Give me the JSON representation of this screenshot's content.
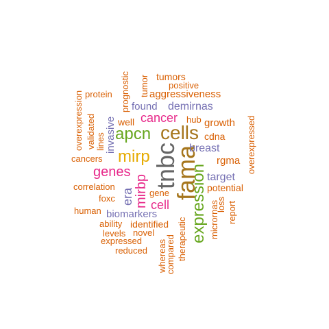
{
  "palette": {
    "orange": "#d95f02",
    "purple": "#7570b3",
    "magenta": "#e7298a",
    "green": "#66a61e",
    "gold": "#e6ab02",
    "brown": "#a6761d",
    "gray": "#666666"
  },
  "words": [
    {
      "text": "tumors"
    },
    {
      "text": "positive"
    },
    {
      "text": "tumor"
    },
    {
      "text": "prognostic"
    },
    {
      "text": "protein"
    },
    {
      "text": "aggressiveness"
    },
    {
      "text": "overexpression"
    },
    {
      "text": "found"
    },
    {
      "text": "demirnas"
    },
    {
      "text": "cancer"
    },
    {
      "text": "well"
    },
    {
      "text": "hub"
    },
    {
      "text": "growth"
    },
    {
      "text": "overexpressed"
    },
    {
      "text": "validated"
    },
    {
      "text": "lines"
    },
    {
      "text": "invasive"
    },
    {
      "text": "apcn"
    },
    {
      "text": "cells"
    },
    {
      "text": "cdna"
    },
    {
      "text": "tnbc"
    },
    {
      "text": "fama"
    },
    {
      "text": "breast"
    },
    {
      "text": "cancers"
    },
    {
      "text": "mirp"
    },
    {
      "text": "rgma"
    },
    {
      "text": "genes"
    },
    {
      "text": "expression"
    },
    {
      "text": "target"
    },
    {
      "text": "correlation"
    },
    {
      "text": "mirbp"
    },
    {
      "text": "era"
    },
    {
      "text": "gene"
    },
    {
      "text": "potential"
    },
    {
      "text": "foxc"
    },
    {
      "text": "cell"
    },
    {
      "text": "micrornas"
    },
    {
      "text": "loss"
    },
    {
      "text": "report"
    },
    {
      "text": "human"
    },
    {
      "text": "biomarkers"
    },
    {
      "text": "ability"
    },
    {
      "text": "identified"
    },
    {
      "text": "levels"
    },
    {
      "text": "novel"
    },
    {
      "text": "therapeutic"
    },
    {
      "text": "whereas"
    },
    {
      "text": "compared"
    },
    {
      "text": "expressed"
    },
    {
      "text": "reduced"
    }
  ]
}
